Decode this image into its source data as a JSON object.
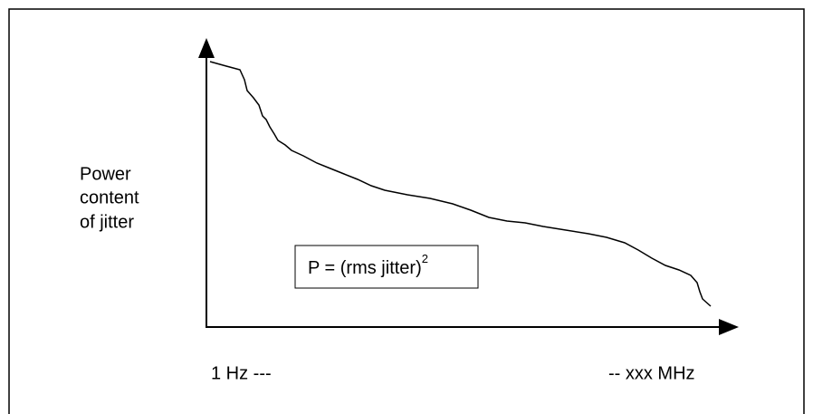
{
  "y_label": [
    "Power",
    "content",
    "of jitter"
  ],
  "formula": {
    "text": "P = (rms jitter)",
    "superscript": "2"
  },
  "x_labels": {
    "left": "1 Hz ---",
    "right": "-- xxx MHz"
  }
}
